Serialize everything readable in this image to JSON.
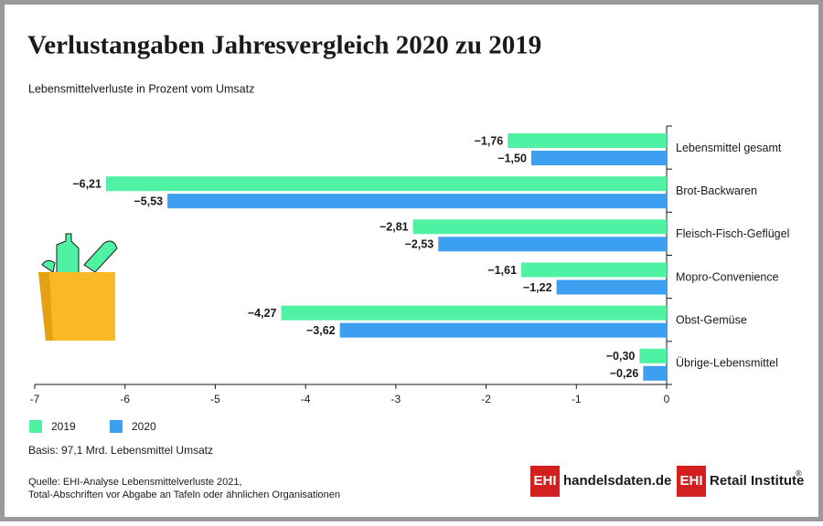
{
  "chart_data": {
    "type": "bar",
    "orientation": "horizontal",
    "title": "Verlustangaben Jahresvergleich 2020 zu 2019",
    "subtitle": "Lebensmittelverluste in Prozent vom Umsatz",
    "categories": [
      "Lebensmittel gesamt",
      "Brot-Backwaren",
      "Fleisch-Fisch-Geflügel",
      "Mopro-Convenience",
      "Obst-Gemüse",
      "Übrige-Lebensmittel"
    ],
    "series": [
      {
        "name": "2019",
        "color": "#4ff2a2",
        "values": [
          -1.76,
          -6.21,
          -2.81,
          -1.61,
          -4.27,
          -0.3
        ],
        "value_labels": [
          "−1,76",
          "−6,21",
          "−2,81",
          "−1,61",
          "−4,27",
          "−0,30"
        ]
      },
      {
        "name": "2020",
        "color": "#3c9ff0",
        "values": [
          -1.5,
          -5.53,
          -2.53,
          -1.22,
          -3.62,
          -0.26
        ],
        "value_labels": [
          "−1,50",
          "−5,53",
          "−2,53",
          "−1,22",
          "−3,62",
          "−0,26"
        ]
      }
    ],
    "xlim": [
      -7,
      0
    ],
    "xticks": [
      -7,
      -6,
      -5,
      -4,
      -3,
      -2,
      -1,
      0
    ],
    "legend": "bottom-left",
    "note": "Basis: 97,1 Mrd. Lebensmittel Umsatz",
    "source": [
      "Quelle: EHI-Analyse Lebensmittelverluste 2021,",
      "Total-Abschriften vor Abgabe an Tafeln oder ähnlichen Organisationen"
    ]
  },
  "logos": [
    {
      "mark": "EHI",
      "text": "handelsdaten.de"
    },
    {
      "mark": "EHI",
      "text": "Retail Institute"
    }
  ],
  "registered": "®"
}
